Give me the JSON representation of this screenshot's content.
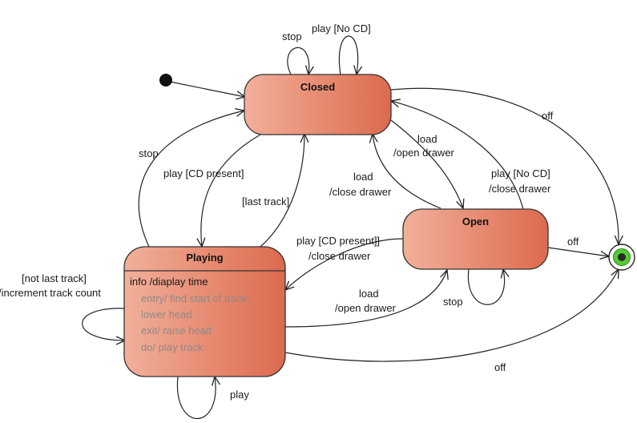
{
  "states": {
    "closed": {
      "name": "Closed"
    },
    "open": {
      "name": "Open"
    },
    "playing": {
      "name": "Playing",
      "internal": "info /diaplay time",
      "activities": [
        "entry/ find start of track;",
        "lower head",
        "exit/ raise head",
        "do/ play track"
      ]
    }
  },
  "transitions": {
    "closed_self_stop": "stop",
    "closed_self_play_nocd": "play [No CD]",
    "closed_to_open": [
      "load",
      "/open drawer"
    ],
    "open_to_closed_load": [
      "load",
      "/close drawer"
    ],
    "open_to_closed_play_nocd": [
      "play [No CD]",
      "/close drawer"
    ],
    "closed_to_final_off": "off",
    "playing_to_closed_stop": "stop",
    "closed_to_playing": "play [CD present]",
    "playing_to_closed_last": "[last track]",
    "open_to_playing": [
      "play [CD present]]",
      "/close drawer"
    ],
    "playing_to_open": [
      "load",
      "/open drawer"
    ],
    "open_to_final_off": "off",
    "open_self_stop": "stop",
    "playing_self_next": [
      "[not last track]",
      "/increment track count"
    ],
    "playing_self_play": "play",
    "playing_to_final_off": "off"
  },
  "colors": {
    "state_fill_light": "#f0aa92",
    "state_fill_dark": "#dd6b4f",
    "state_border": "#333333",
    "final_inner": "#55cc33"
  }
}
